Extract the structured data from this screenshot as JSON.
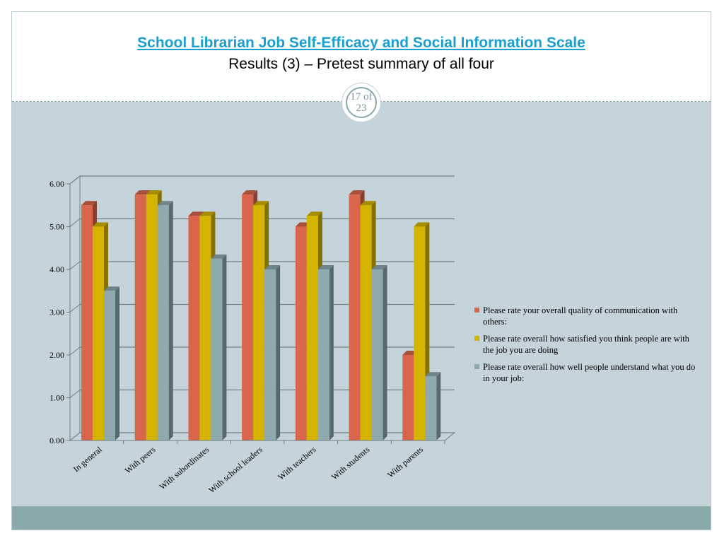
{
  "header": {
    "title": "School Librarian Job Self-Efficacy and Social Information Scale",
    "subtitle": "Results (3) – Pretest summary of all four",
    "page_top": "17 of",
    "page_bottom": "23"
  },
  "colors": {
    "series1": "#d9664b",
    "series2": "#d4b400",
    "series3": "#8eaaaf",
    "body_bg": "#c5d3da",
    "footer": "#89a9ab",
    "title_link": "#1a9fd0"
  },
  "chart_data": {
    "type": "bar",
    "title": "",
    "xlabel": "",
    "ylabel": "",
    "ylim": [
      0,
      6
    ],
    "yticks": [
      "0.00",
      "1.00",
      "2.00",
      "3.00",
      "4.00",
      "5.00",
      "6.00"
    ],
    "grid": true,
    "legend_position": "right",
    "categories": [
      "In general",
      "With peers",
      "With subordinates",
      "With school leaders",
      "With teachers",
      "With students",
      "With parents"
    ],
    "series": [
      {
        "name": "Please rate your overall quality of communication with others:",
        "values": [
          5.5,
          5.75,
          5.25,
          5.75,
          5.0,
          5.75,
          2.0
        ]
      },
      {
        "name": "Please rate overall how satisfied you think people are with the job you are doing",
        "values": [
          5.0,
          5.75,
          5.25,
          5.5,
          5.25,
          5.5,
          5.0
        ]
      },
      {
        "name": "Please rate overall how well people understand what you do in your job:",
        "values": [
          3.5,
          5.5,
          4.25,
          4.0,
          4.0,
          4.0,
          1.5
        ]
      }
    ]
  }
}
